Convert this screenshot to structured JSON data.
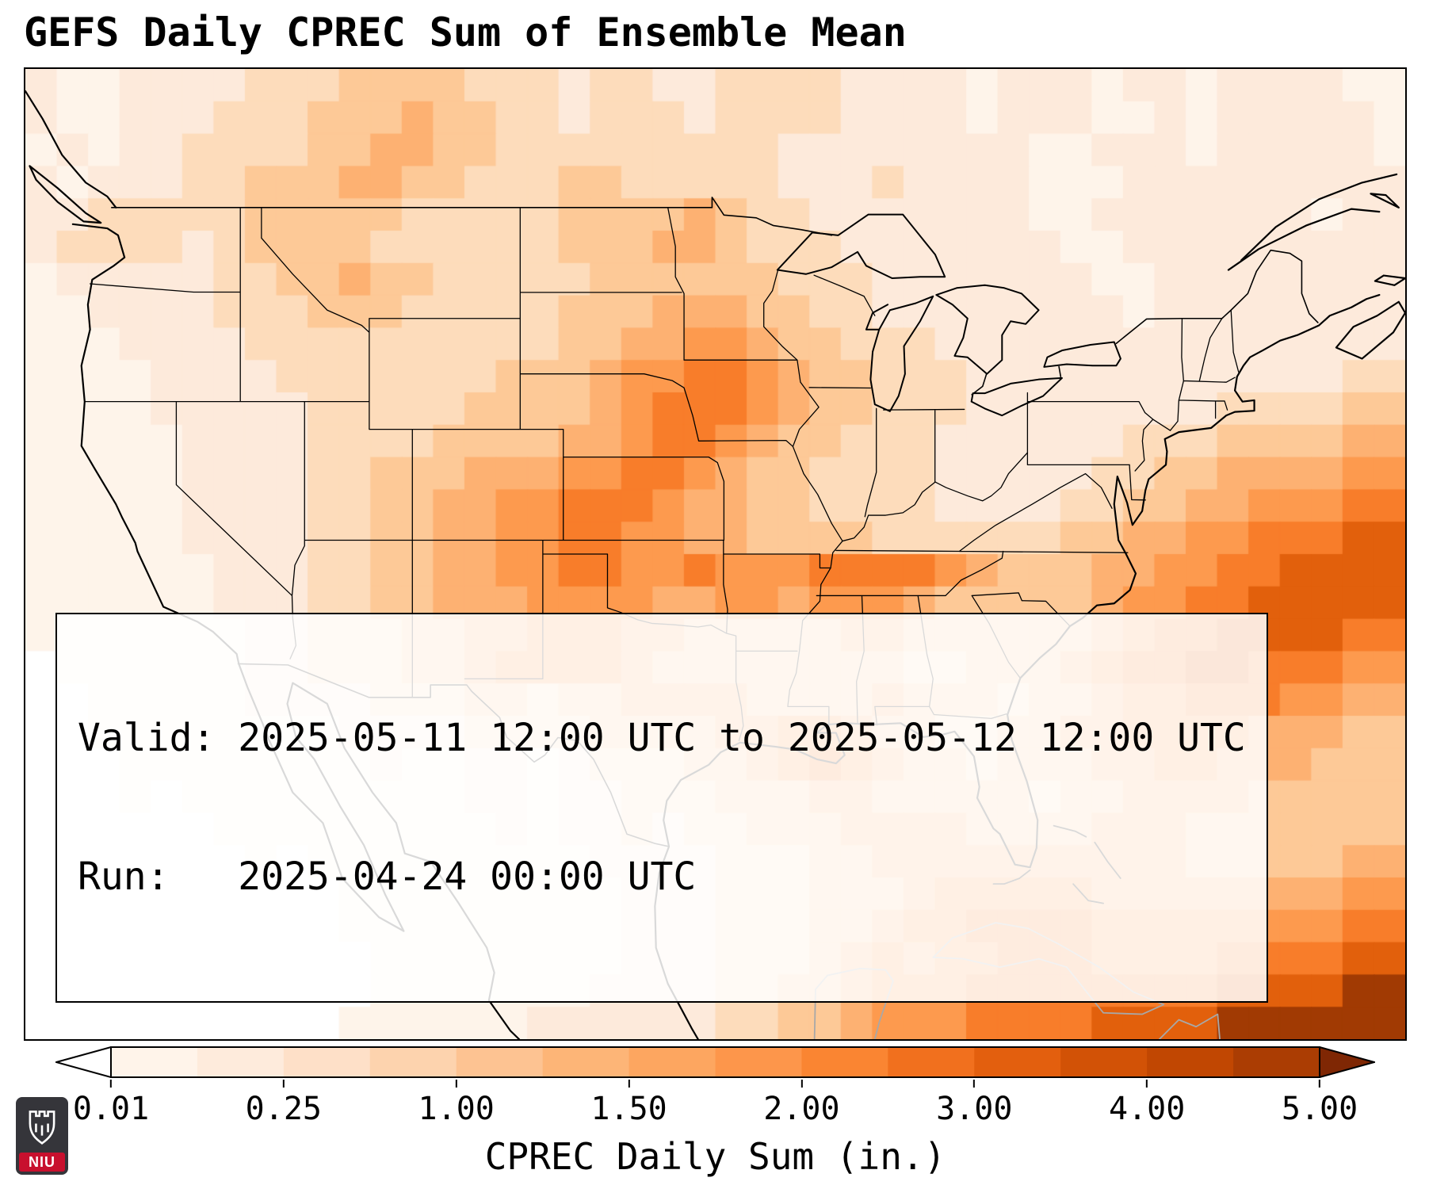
{
  "title": "GEFS Daily CPREC Sum of Ensemble Mean",
  "info_box": {
    "line1": "Valid: 2025-05-11 12:00 UTC to 2025-05-12 12:00 UTC",
    "line2": "Run:   2025-04-24 00:00 UTC"
  },
  "colorbar": {
    "label": "CPREC Daily Sum (in.)",
    "ticks": [
      "0.01",
      "0.25",
      "1.00",
      "1.50",
      "2.00",
      "3.00",
      "4.00",
      "5.00"
    ],
    "under_color": "#ffffff",
    "over_color": "#7f2704",
    "segment_colors": [
      "#fff4ea",
      "#feebdc",
      "#fee0c8",
      "#fdd3ae",
      "#fdc392",
      "#fdb577",
      "#fda660",
      "#fd964b",
      "#fa8532",
      "#f1701e",
      "#e35f0e",
      "#d25206",
      "#c14702",
      "#ab3d03"
    ]
  },
  "logo": {
    "text": "NIU",
    "bg": "#35353a",
    "red": "#c8102e"
  },
  "chart_data": {
    "type": "heatmap",
    "title": "GEFS Daily CPREC Sum of Ensemble Mean",
    "variable": "CPREC Daily Sum",
    "units": "in.",
    "valid": "2025-05-11 12:00 UTC to 2025-05-12 12:00 UTC",
    "run": "2025-04-24 00:00 UTC",
    "levels": [
      0.01,
      0.25,
      1.0,
      1.5,
      2.0,
      3.0,
      4.0,
      5.0
    ],
    "colorbar_extend": "both",
    "lon_range": [
      -127,
      -63
    ],
    "lat_range": [
      19,
      54
    ],
    "grid_cols": 44,
    "grid_rows": 30,
    "intensity_values_in": {
      "0": 0.0,
      "1": 0.05,
      "2": 0.15,
      "3": 0.4,
      "4": 0.8,
      "5": 1.2,
      "6": 1.8,
      "7": 2.5,
      "8": 3.6,
      "9": 5.0
    },
    "palette": [
      "#ffffff",
      "#fef4ea",
      "#fdeadb",
      "#fddcbb",
      "#fdc997",
      "#fdb172",
      "#fd9a4e",
      "#f87d2a",
      "#e2600c",
      "#a13a03"
    ],
    "grid": [
      "21122223334444333233223333222212221221222211",
      "21122233344454433233323333222212221121222221",
      "12122333344554433333333322222222112221222221",
      "21222334445544333443333322232222111222222222",
      "22333334444433333444454332222222112222222122",
      "23333234444333333444554333222222211222222222",
      "12222233445443333344444433322222221122222222",
      "11222233344433333444555443322222222122222222",
      "11122223333333333445566544333222222222222222",
      "11112222333333344456677654433322222222222233",
      "11112222233333444456777654433322222222333344",
      "11111222233334444556776544333222222333444455",
      "11111222233444555667765443333222223344555566",
      "11111222233445566777655443333222233445566677",
      "11111222233445566776655444433333344556677788",
      "11111122233445566776676667777654445566778888",
      "11111122233445556666556656665444445667788888",
      "11111112233344556665544444554444445677888877",
      "01111112233344566665444444443344456778877766",
      "00111112222333443445555444454443445667776655",
      "00111111112222333344445566544334455666655544",
      "00011111111211221233344567654434445566555444",
      "00010111111111221223334445544444344555544444",
      "00000011111111121223233444555544445554444444",
      "00000001011111111122223334455555555554444455",
      "00000000001111111112223334445666665555555566",
      "00000000001111111112223334456677776666666677",
      "00000000000111111112223334565667776666777788",
      "00000000000111111122223344566677777777888899",
      "00000000001111112222223344566677778888999999"
    ]
  }
}
